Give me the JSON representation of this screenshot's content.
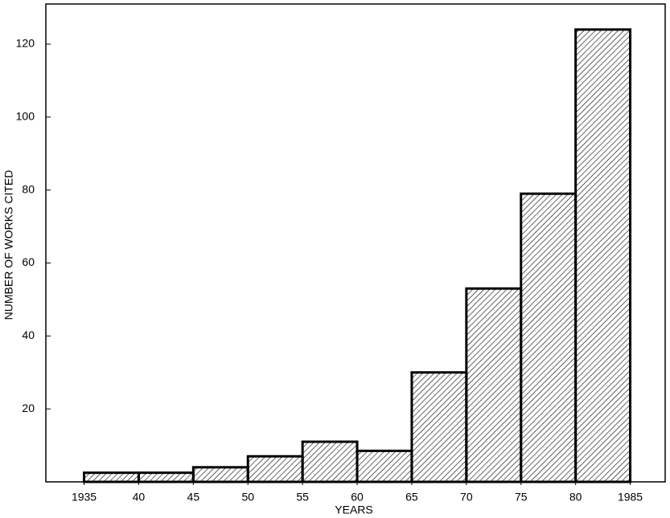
{
  "chart_data": {
    "type": "histogram",
    "xlabel": "YEARS",
    "ylabel": "NUMBER OF WORKS CITED",
    "bins": [
      1935,
      1940,
      1945,
      1950,
      1955,
      1960,
      1965,
      1970,
      1975,
      1980,
      1985
    ],
    "values": [
      2.5,
      2.5,
      4,
      7,
      11,
      8.5,
      30,
      53,
      79,
      124
    ],
    "xlim": [
      1931.5,
      1988.2
    ],
    "ylim": [
      0,
      131
    ],
    "xticks": [
      {
        "value": 1935,
        "label": "1935"
      },
      {
        "value": 1940,
        "label": "40"
      },
      {
        "value": 1945,
        "label": "45"
      },
      {
        "value": 1950,
        "label": "50"
      },
      {
        "value": 1955,
        "label": "55"
      },
      {
        "value": 1960,
        "label": "60"
      },
      {
        "value": 1965,
        "label": "65"
      },
      {
        "value": 1970,
        "label": "70"
      },
      {
        "value": 1975,
        "label": "75"
      },
      {
        "value": 1980,
        "label": "80"
      },
      {
        "value": 1985,
        "label": "1985"
      }
    ],
    "yticks": [
      20,
      40,
      60,
      80,
      100,
      120
    ],
    "color": "#000000"
  }
}
